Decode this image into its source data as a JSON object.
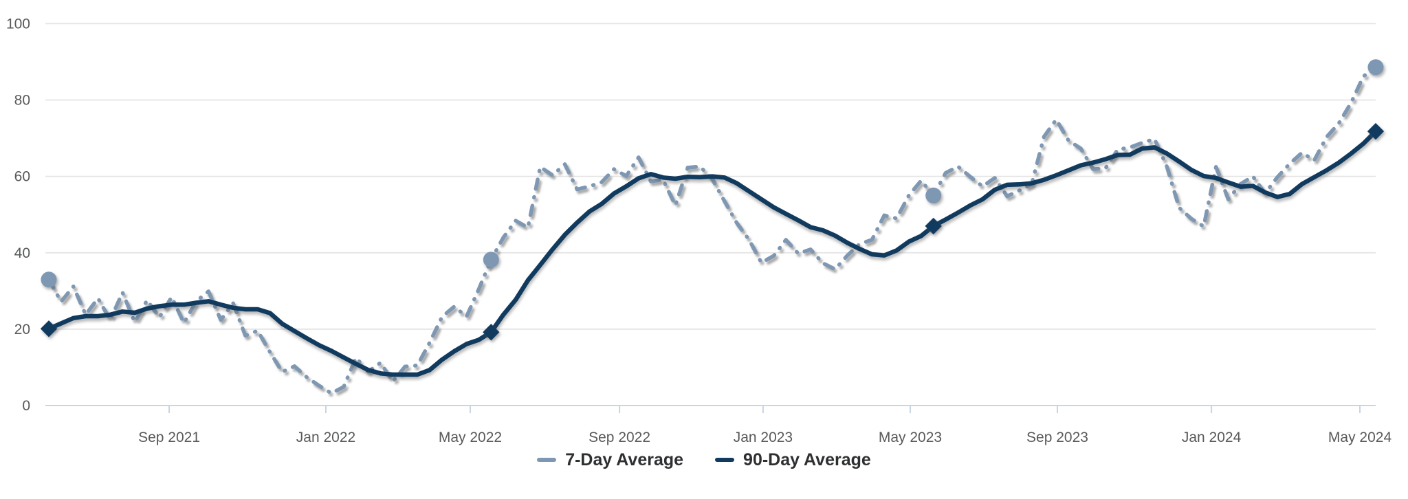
{
  "chart_data": {
    "type": "line",
    "title": "",
    "xlabel": "",
    "ylabel": "",
    "ylim": [
      0,
      100
    ],
    "y_ticks": [
      0,
      20,
      40,
      60,
      80,
      100
    ],
    "grid": "horizontal",
    "legend_position": "bottom-center",
    "x_ticks": [
      {
        "label": "Sep 2021",
        "t": 0.0907
      },
      {
        "label": "Jan 2022",
        "t": 0.2088
      },
      {
        "label": "May 2022",
        "t": 0.3176
      },
      {
        "label": "Sep 2022",
        "t": 0.4301
      },
      {
        "label": "Jan 2023",
        "t": 0.5383
      },
      {
        "label": "May 2023",
        "t": 0.6492
      },
      {
        "label": "Sep 2023",
        "t": 0.7601
      },
      {
        "label": "Jan 2024",
        "t": 0.8762
      },
      {
        "label": "May 2024",
        "t": 0.9881
      }
    ],
    "series": [
      {
        "name": "7-Day Average",
        "style": "dash-dot",
        "color": "#7E97B2",
        "marker": "circle",
        "marker_indices": [
          0,
          36,
          72,
          108
        ],
        "values": [
          33.0,
          27.2,
          31.2,
          23.8,
          28.1,
          22.4,
          29.6,
          21.8,
          27.6,
          23.1,
          28.4,
          21.6,
          27.3,
          29.9,
          22.4,
          26.8,
          18.3,
          19.6,
          14.0,
          8.8,
          10.3,
          7.4,
          5.2,
          3.2,
          4.9,
          12.5,
          8.9,
          11.2,
          6.3,
          10.2,
          10.5,
          16.5,
          23.2,
          25.9,
          23.3,
          30.5,
          38.2,
          44.0,
          48.4,
          46.6,
          62.5,
          60.3,
          63.2,
          56.6,
          57.4,
          58.5,
          61.9,
          60.1,
          65.0,
          58.7,
          59.1,
          52.4,
          62.3,
          62.6,
          59.3,
          53.5,
          47.8,
          43.4,
          37.4,
          39.2,
          43.4,
          39.8,
          40.9,
          37.3,
          35.7,
          39.3,
          42.3,
          43.4,
          49.8,
          49.0,
          55.0,
          58.9,
          55.0,
          60.9,
          62.6,
          59.9,
          57.4,
          59.6,
          54.8,
          56.3,
          58.0,
          70.4,
          74.9,
          69.4,
          67.3,
          61.9,
          62.1,
          67.0,
          67.6,
          68.8,
          69.8,
          62.6,
          51.8,
          48.9,
          46.9,
          62.5,
          54.0,
          58.0,
          60.0,
          55.6,
          59.8,
          63.3,
          66.2,
          64.2,
          70.3,
          73.9,
          79.3,
          86.2,
          88.6
        ]
      },
      {
        "name": "90-Day Average",
        "style": "solid",
        "color": "#113A5F",
        "marker": "diamond",
        "marker_indices": [
          0,
          36,
          72,
          108
        ],
        "values": [
          20.1,
          21.5,
          22.9,
          23.4,
          23.4,
          23.8,
          24.6,
          24.3,
          25.4,
          26.0,
          26.4,
          26.4,
          26.9,
          27.3,
          26.4,
          25.6,
          25.2,
          25.2,
          24.2,
          21.4,
          19.5,
          17.6,
          15.8,
          14.3,
          12.6,
          10.9,
          9.3,
          8.4,
          8.1,
          8.1,
          8.1,
          9.3,
          12.0,
          14.2,
          16.1,
          17.2,
          19.2,
          23.8,
          27.7,
          32.8,
          36.8,
          40.9,
          44.7,
          47.9,
          50.8,
          52.8,
          55.5,
          57.4,
          59.5,
          60.6,
          59.7,
          59.4,
          59.9,
          59.8,
          60.0,
          59.7,
          58.2,
          56.1,
          54.0,
          51.9,
          50.2,
          48.5,
          46.7,
          45.9,
          44.5,
          42.6,
          41.0,
          39.6,
          39.3,
          40.6,
          42.9,
          44.4,
          47.0,
          48.7,
          50.5,
          52.4,
          54.0,
          56.5,
          57.8,
          57.9,
          58.2,
          59.1,
          60.3,
          61.6,
          62.9,
          63.6,
          64.5,
          65.6,
          65.7,
          67.3,
          67.6,
          66.0,
          63.9,
          61.7,
          60.1,
          59.6,
          58.4,
          57.3,
          57.5,
          55.8,
          54.6,
          55.4,
          58.0,
          59.8,
          61.6,
          63.6,
          66.0,
          68.6,
          71.8
        ]
      }
    ]
  },
  "theme": {
    "background": "#FFFFFF",
    "grid_color": "#E4E4E4",
    "axis_color": "#C9D4E4",
    "tick_label_color": "#58595B",
    "legend_text_color": "#2E2F31"
  }
}
